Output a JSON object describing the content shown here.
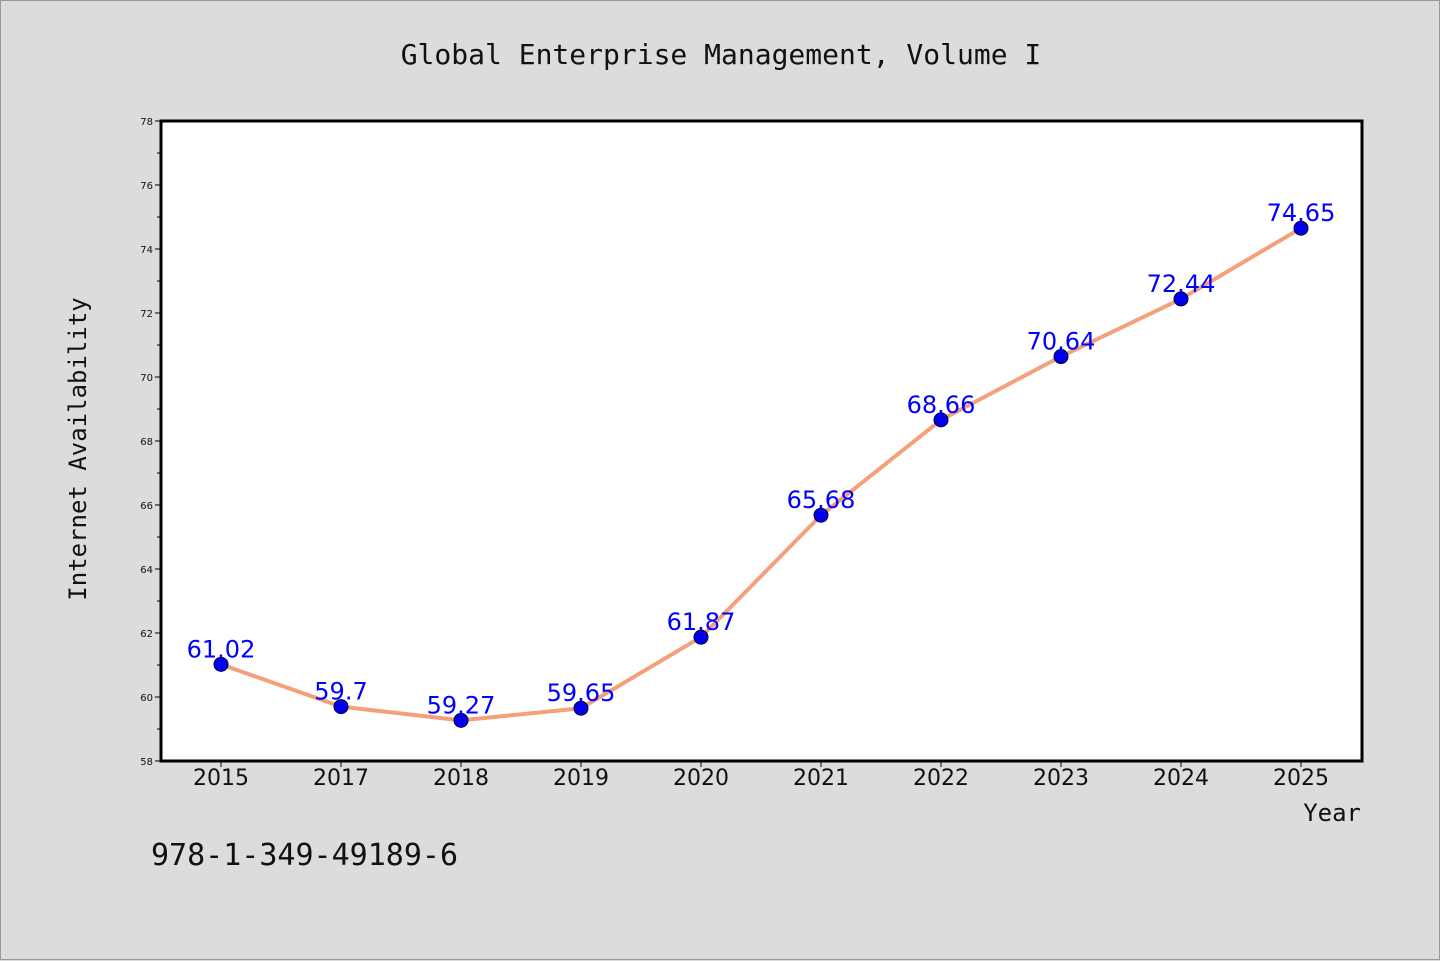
{
  "chart_data": {
    "type": "line",
    "title": "Global Enterprise Management, Volume I",
    "xlabel": "Year",
    "ylabel": "Internet Availability",
    "categories": [
      "2015",
      "2017",
      "2018",
      "2019",
      "2020",
      "2021",
      "2022",
      "2023",
      "2024",
      "2025"
    ],
    "series": [
      {
        "values": [
          61.02,
          59.7,
          59.27,
          59.65,
          61.87,
          65.68,
          68.66,
          70.64,
          72.44,
          74.65
        ],
        "line_color": "#f4a07a",
        "marker_color": "#0000ee"
      }
    ],
    "data_labels": [
      "61.02",
      "59.7",
      "59.27",
      "59.65",
      "61.87",
      "65.68",
      "68.66",
      "70.64",
      "72.44",
      "74.65"
    ],
    "ylim": [
      58,
      78
    ],
    "yticks": [
      "58",
      "60",
      "62",
      "64",
      "66",
      "68",
      "70",
      "72",
      "74",
      "76",
      "78"
    ],
    "grid": false,
    "label_color": "#0000ff"
  },
  "footer": {
    "isbn": "978-1-349-49189-6"
  }
}
